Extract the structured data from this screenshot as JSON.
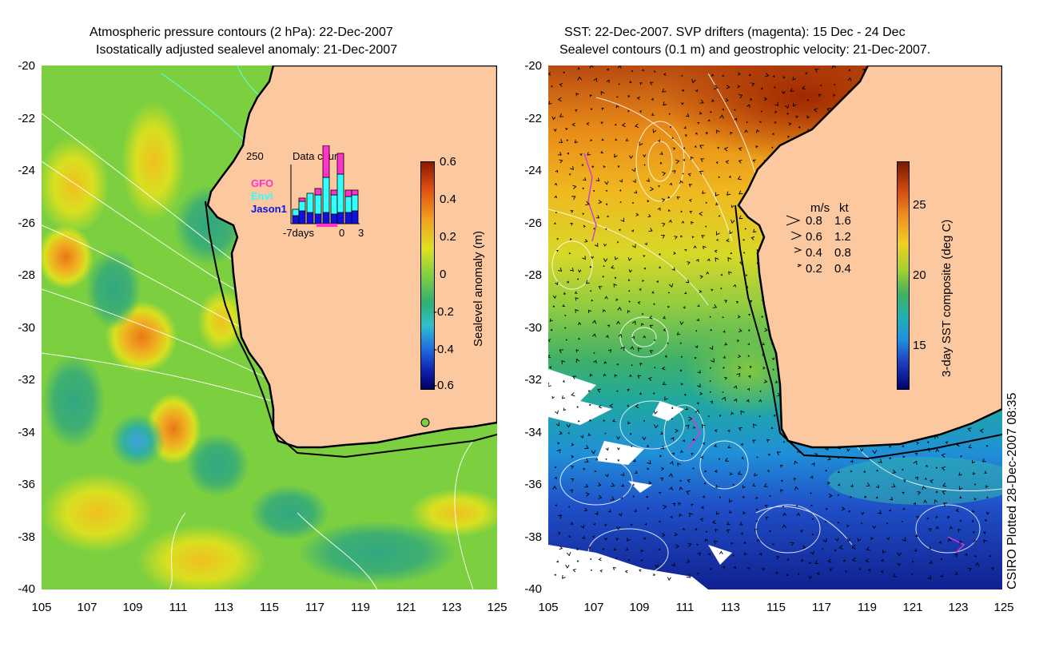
{
  "left_panel": {
    "title_line1": "Atmospheric pressure contours (2 hPa): 22-Dec-2007",
    "title_line2": "Isostatically adjusted sealevel anomaly: 21-Dec-2007",
    "y_ticks": [
      "-20",
      "-22",
      "-24",
      "-26",
      "-28",
      "-30",
      "-32",
      "-34",
      "-36",
      "-38",
      "-40"
    ],
    "x_ticks": [
      "105",
      "107",
      "109",
      "111",
      "113",
      "115",
      "117",
      "119",
      "121",
      "123",
      "125"
    ],
    "colorbar_label": "Sealevel anomaly (m)",
    "colorbar_ticks": [
      "0.6",
      "0.4",
      "0.2",
      "0",
      "-0.2",
      "-0.4",
      "-0.6"
    ],
    "data_count": {
      "label_250": "250",
      "title": "Data count",
      "legend": [
        {
          "name": "GFO",
          "color": "#ff33cc"
        },
        {
          "name": "Envi",
          "color": "#33ffff"
        },
        {
          "name": "Jason1",
          "color": "#1111dd"
        }
      ],
      "x_label_left": "-7days",
      "x_label_zero": "0",
      "x_label_right": "3"
    }
  },
  "right_panel": {
    "title_line1": "SST: 22-Dec-2007. SVP drifters (magenta): 15 Dec - 24 Dec",
    "title_line2": "Sealevel contours (0.1 m) and geostrophic velocity: 21-Dec-2007.",
    "y_ticks": [
      "-20",
      "-22",
      "-24",
      "-26",
      "-28",
      "-30",
      "-32",
      "-34",
      "-36",
      "-38",
      "-40"
    ],
    "x_ticks": [
      "105",
      "107",
      "109",
      "111",
      "113",
      "115",
      "117",
      "119",
      "121",
      "123",
      "125"
    ],
    "colorbar_label": "3-day SST composite (deg C)",
    "colorbar_ticks": [
      "25",
      "20",
      "15"
    ],
    "velocity_legend": {
      "header_ms": "m/s",
      "header_kt": "kt",
      "rows": [
        {
          "ms": "0.8",
          "kt": "1.6"
        },
        {
          "ms": "0.6",
          "kt": "1.2"
        },
        {
          "ms": "0.4",
          "kt": "0.8"
        },
        {
          "ms": "0.2",
          "kt": "0.4"
        }
      ]
    }
  },
  "credit": "CSIRO Plotted 28-Dec-2007 08:35",
  "colors": {
    "land": "#fcc8a0",
    "coast": "#000000",
    "contour": "#ffffff"
  }
}
